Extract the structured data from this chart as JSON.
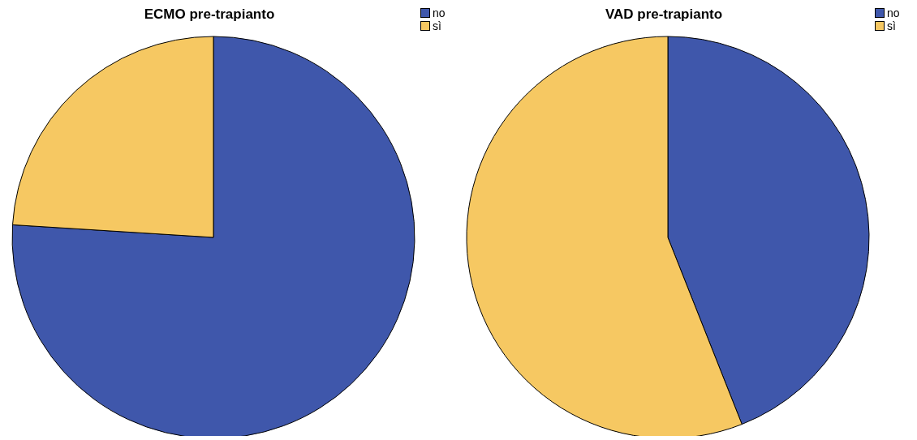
{
  "chart_data": [
    {
      "type": "pie",
      "title": "ECMO pre-trapianto",
      "categories": [
        "no",
        "sì"
      ],
      "values": [
        76,
        24
      ],
      "colors": [
        "#3f57ab",
        "#f6c862"
      ],
      "legend": "top right"
    },
    {
      "type": "pie",
      "title": "VAD pre-trapianto",
      "categories": [
        "no",
        "sì"
      ],
      "values": [
        44,
        56
      ],
      "colors": [
        "#3f57ab",
        "#f6c862"
      ],
      "legend": "top right"
    }
  ]
}
